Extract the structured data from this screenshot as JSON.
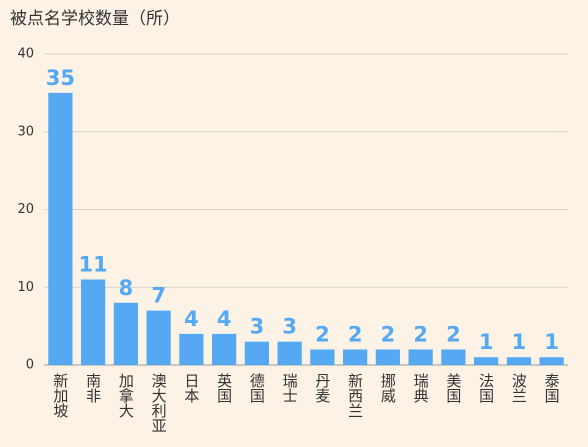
{
  "chart_data": {
    "type": "bar",
    "title": "被点名学校数量（所）",
    "categories": [
      "新加坡",
      "南非",
      "加拿大",
      "澳大利亚",
      "日本",
      "英国",
      "德国",
      "瑞士",
      "丹麦",
      "新西兰",
      "挪威",
      "瑞典",
      "美国",
      "法国",
      "波兰",
      "泰国"
    ],
    "values": [
      35,
      11,
      8,
      7,
      4,
      4,
      3,
      3,
      2,
      2,
      2,
      2,
      2,
      1,
      1,
      1
    ],
    "color": "#55a9f3",
    "ylim": [
      0,
      40
    ],
    "yticks": [
      0,
      10,
      20,
      30,
      40
    ],
    "grid": true
  }
}
